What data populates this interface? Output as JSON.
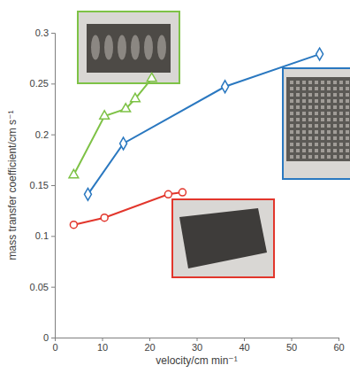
{
  "chart_data": {
    "type": "line",
    "x_label": "velocity/cm min⁻¹",
    "y_label": "mass transfer coefficient/cm s⁻¹",
    "xlim": [
      0,
      60
    ],
    "xticks": [
      0,
      10,
      20,
      30,
      40,
      50,
      60
    ],
    "ylim": [
      0,
      0.3
    ],
    "yticks": [
      0,
      0.05,
      0.1,
      0.15,
      0.2,
      0.25,
      0.3
    ],
    "grid": false,
    "series": [
      {
        "color": "#7ec246",
        "marker": "triangle",
        "x": [
          4,
          10.5,
          15,
          17,
          20.5
        ],
        "values": [
          0.16,
          0.218,
          0.225,
          0.235,
          0.255
        ]
      },
      {
        "color": "#2a78c0",
        "marker": "diamond",
        "x": [
          7,
          14.5,
          36,
          56
        ],
        "values": [
          0.141,
          0.191,
          0.247,
          0.279
        ]
      },
      {
        "color": "#e2362c",
        "marker": "circle",
        "x": [
          4,
          10.5,
          24,
          27
        ],
        "values": [
          0.111,
          0.118,
          0.141,
          0.143
        ]
      }
    ]
  }
}
